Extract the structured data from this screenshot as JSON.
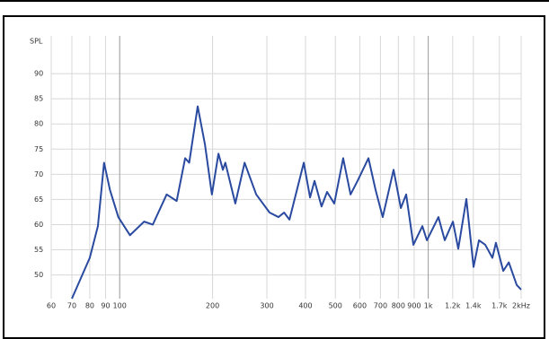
{
  "chart_data": {
    "type": "line",
    "y_label": "SPL",
    "x_scale": "log",
    "grid": true,
    "x": [
      70,
      80,
      85,
      89,
      93,
      99,
      108,
      120,
      128,
      142,
      153,
      163,
      168,
      179,
      189,
      199,
      209,
      216,
      220,
      237,
      254,
      277,
      306,
      327,
      341,
      355,
      395,
      414,
      428,
      451,
      470,
      496,
      530,
      560,
      590,
      640,
      675,
      712,
      772,
      815,
      848,
      895,
      957,
      990,
      1079,
      1131,
      1202,
      1251,
      1329,
      1402,
      1460,
      1530,
      1614,
      1657,
      1750,
      1824,
      1935,
      2000
    ],
    "series": [
      {
        "name": "SPL",
        "color": "#2a4aa0",
        "values": [
          45.3,
          53.4,
          59.7,
          72.3,
          66.9,
          61.5,
          57.9,
          60.6,
          60,
          66,
          64.7,
          73.2,
          72.3,
          83.5,
          75.9,
          66,
          74.1,
          70.9,
          72.3,
          64.2,
          72.3,
          66,
          62.4,
          61.5,
          62.4,
          61,
          72.3,
          65.4,
          68.7,
          63.6,
          66.5,
          64.2,
          73.2,
          66,
          68.7,
          73.2,
          66.9,
          61.5,
          70.9,
          63.3,
          66,
          56,
          59.7,
          56.9,
          61.5,
          56.9,
          60.6,
          55.2,
          65.1,
          51.6,
          56.9,
          56,
          53.4,
          56.4,
          50.8,
          52.5,
          48,
          47.1
        ]
      }
    ],
    "xlim": [
      60,
      2000
    ],
    "ylim": [
      45.3,
      97.5
    ],
    "xticks": [
      60,
      70,
      80,
      90,
      100,
      200,
      300,
      400,
      500,
      600,
      700,
      800,
      900,
      {
        "value": 1000,
        "label": "1k"
      },
      {
        "value": 1200,
        "label": "1.2k"
      },
      {
        "value": 1400,
        "label": "1.4k"
      },
      {
        "value": 1700,
        "label": "1.7k"
      },
      {
        "value": 2000,
        "label": "2kHz"
      }
    ],
    "yticks": [
      50,
      55,
      60,
      65,
      70,
      75,
      80,
      85,
      90
    ]
  }
}
